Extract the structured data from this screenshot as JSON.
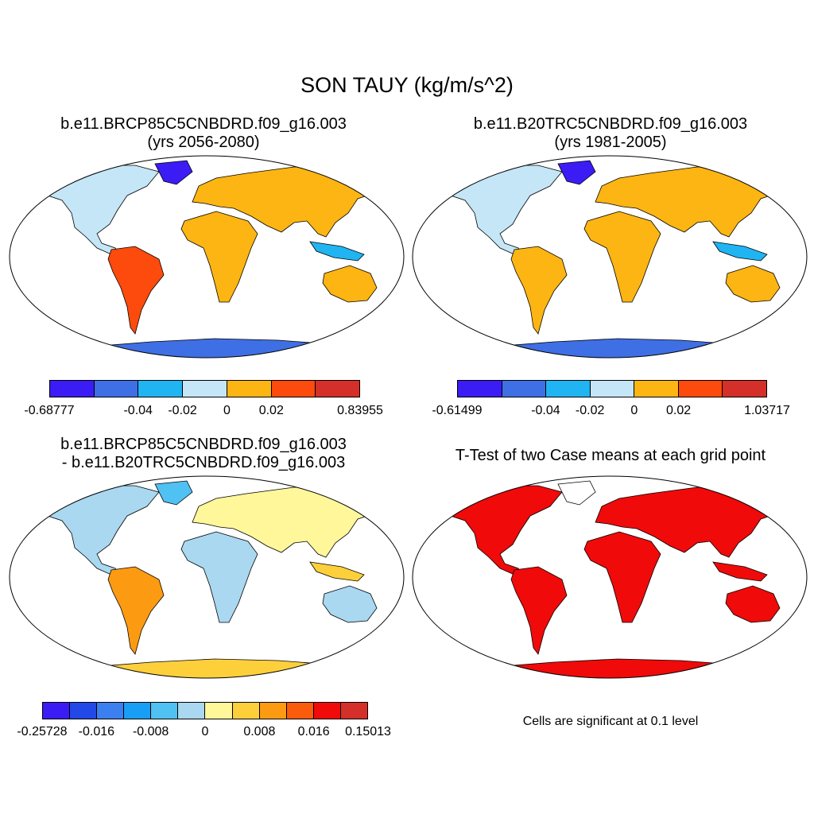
{
  "title": "SON TAUY (kg/m/s^2)",
  "panels": [
    {
      "line1": "b.e11.BRCP85C5CNBDRD.f09_g16.003",
      "line2": "(yrs 2056-2080)",
      "colorbar": {
        "colors": [
          "#3b1cf5",
          "#3f6fe4",
          "#20b4f2",
          "#c4e6f6",
          "#fcb512",
          "#fd4a0d",
          "#d42f28"
        ],
        "labels": [
          "-0.68777",
          "-0.04",
          "-0.02",
          "0",
          "0.02",
          "0.83955"
        ]
      }
    },
    {
      "line1": "b.e11.B20TRC5CNBDRD.f09_g16.003",
      "line2": "(yrs 1981-2005)",
      "colorbar": {
        "colors": [
          "#3b1cf5",
          "#3f6fe4",
          "#20b4f2",
          "#c4e6f6",
          "#fcb512",
          "#fd4a0d",
          "#d42f28"
        ],
        "labels": [
          "-0.61499",
          "-0.04",
          "-0.02",
          "0",
          "0.02",
          "1.03717"
        ]
      }
    },
    {
      "line1": "b.e11.BRCP85C5CNBDRD.f09_g16.003",
      "line2": "- b.e11.B20TRC5CNBDRD.f09_g16.003",
      "colorbar": {
        "colors": [
          "#3b1cf5",
          "#2348e8",
          "#3c7ff0",
          "#199ef5",
          "#4fc1f2",
          "#a9d8f0",
          "#fff79a",
          "#fdd03b",
          "#fc9b12",
          "#fb5c0c",
          "#f00a0a",
          "#d42f28"
        ],
        "labels": [
          "-0.25728",
          "-0.016",
          "-0.008",
          "0",
          "0.008",
          "0.016",
          "0.15013"
        ]
      }
    },
    {
      "line1": "T-Test of two Case means at each grid point",
      "note": "Cells are significant at 0.1 level"
    }
  ]
}
